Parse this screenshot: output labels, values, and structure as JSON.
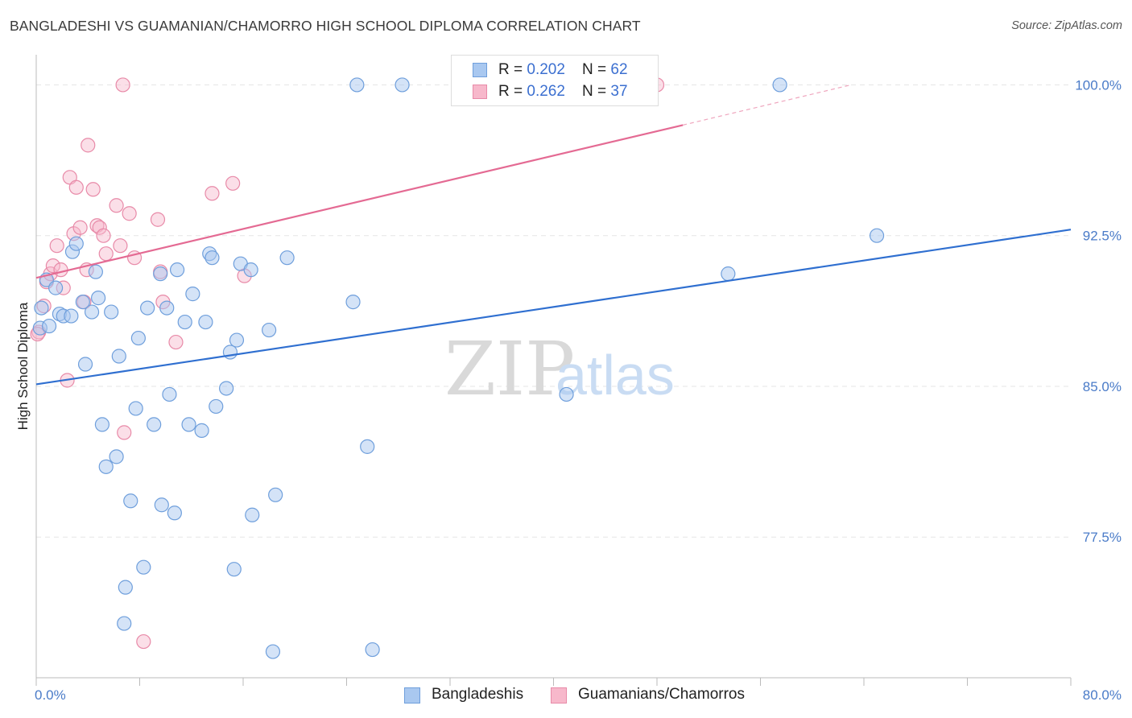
{
  "title": "BANGLADESHI VS GUAMANIAN/CHAMORRO HIGH SCHOOL DIPLOMA CORRELATION CHART",
  "source": "Source: ZipAtlas.com",
  "watermark": {
    "zip": "ZIP",
    "atlas": "atlas"
  },
  "legend": {
    "rows": [
      {
        "r_label": "R = ",
        "r_value": "0.202",
        "n_label": "N = ",
        "n_value": "62"
      },
      {
        "r_label": "R = ",
        "r_value": "0.262",
        "n_label": "N = ",
        "n_value": "37"
      }
    ]
  },
  "bottom_legend": {
    "series1": "Bangladeshis",
    "series2": "Guamanians/Chamorros"
  },
  "colors": {
    "series1_fill": "#a9c8f0",
    "series1_stroke": "#6f9fdc",
    "series1_line": "#2f6fd0",
    "series2_fill": "#f7b8cb",
    "series2_stroke": "#e88aa8",
    "series2_line": "#e46a93",
    "grid": "#e5e5e5",
    "axis_text": "#4a7bc8"
  },
  "chart_data": {
    "type": "scatter",
    "title": "BANGLADESHI VS GUAMANIAN/CHAMORRO HIGH SCHOOL DIPLOMA CORRELATION CHART",
    "xlabel": "",
    "ylabel": "High School Diploma",
    "xlim": [
      0,
      80
    ],
    "ylim": [
      70.5,
      101.5
    ],
    "x_tick_labels": [
      "0.0%",
      "80.0%"
    ],
    "y_ticks": [
      77.5,
      85.0,
      92.5,
      100.0
    ],
    "y_tick_labels": [
      "77.5%",
      "85.0%",
      "92.5%",
      "100.0%"
    ],
    "grid": true,
    "series": [
      {
        "name": "Bangladeshis",
        "r": 0.202,
        "n": 62,
        "trend": {
          "x": [
            0,
            80
          ],
          "y": [
            85.1,
            92.8
          ]
        },
        "points": [
          [
            0.3,
            87.9
          ],
          [
            0.4,
            88.9
          ],
          [
            0.8,
            90.3
          ],
          [
            1.0,
            88.0
          ],
          [
            1.5,
            89.9
          ],
          [
            1.8,
            88.6
          ],
          [
            2.1,
            88.5
          ],
          [
            2.7,
            88.5
          ],
          [
            2.8,
            91.7
          ],
          [
            3.1,
            92.1
          ],
          [
            3.6,
            89.2
          ],
          [
            3.8,
            86.1
          ],
          [
            4.3,
            88.7
          ],
          [
            4.6,
            90.7
          ],
          [
            4.8,
            89.4
          ],
          [
            5.1,
            83.1
          ],
          [
            5.4,
            81.0
          ],
          [
            5.8,
            88.7
          ],
          [
            6.2,
            81.5
          ],
          [
            6.4,
            86.5
          ],
          [
            6.8,
            73.2
          ],
          [
            6.9,
            75.0
          ],
          [
            7.3,
            79.3
          ],
          [
            7.7,
            83.9
          ],
          [
            7.9,
            87.4
          ],
          [
            8.3,
            76.0
          ],
          [
            8.6,
            88.9
          ],
          [
            9.1,
            83.1
          ],
          [
            9.6,
            90.6
          ],
          [
            9.7,
            79.1
          ],
          [
            10.1,
            88.9
          ],
          [
            10.3,
            84.6
          ],
          [
            10.7,
            78.7
          ],
          [
            10.9,
            90.8
          ],
          [
            11.5,
            88.2
          ],
          [
            11.8,
            83.1
          ],
          [
            12.1,
            89.6
          ],
          [
            12.8,
            82.8
          ],
          [
            13.1,
            88.2
          ],
          [
            13.4,
            91.6
          ],
          [
            13.6,
            91.4
          ],
          [
            13.9,
            84.0
          ],
          [
            14.7,
            84.9
          ],
          [
            15.0,
            86.7
          ],
          [
            15.3,
            75.9
          ],
          [
            15.5,
            87.3
          ],
          [
            15.8,
            91.1
          ],
          [
            16.6,
            90.8
          ],
          [
            16.7,
            78.6
          ],
          [
            18.0,
            87.8
          ],
          [
            18.3,
            71.8
          ],
          [
            18.5,
            79.6
          ],
          [
            19.4,
            91.4
          ],
          [
            24.5,
            89.2
          ],
          [
            24.8,
            100.0
          ],
          [
            25.6,
            82.0
          ],
          [
            26.0,
            71.9
          ],
          [
            28.3,
            100.0
          ],
          [
            41.0,
            84.6
          ],
          [
            53.5,
            90.6
          ],
          [
            57.5,
            100.0
          ],
          [
            65.0,
            92.5
          ]
        ]
      },
      {
        "name": "Guamanians/Chamorros",
        "r": 0.262,
        "n": 37,
        "trend": {
          "x": [
            0,
            50
          ],
          "y": [
            90.4,
            98.0
          ]
        },
        "trend_dashed": {
          "x": [
            50,
            63
          ],
          "y": [
            98.0,
            100.0
          ]
        },
        "points": [
          [
            0.2,
            87.7
          ],
          [
            0.6,
            89.0
          ],
          [
            0.8,
            90.2
          ],
          [
            1.1,
            90.6
          ],
          [
            1.3,
            91.0
          ],
          [
            1.6,
            92.0
          ],
          [
            1.9,
            90.8
          ],
          [
            2.1,
            89.9
          ],
          [
            2.4,
            85.3
          ],
          [
            2.6,
            95.4
          ],
          [
            2.9,
            92.6
          ],
          [
            3.1,
            94.9
          ],
          [
            3.4,
            92.9
          ],
          [
            3.7,
            89.2
          ],
          [
            3.9,
            90.8
          ],
          [
            4.0,
            97.0
          ],
          [
            4.4,
            94.8
          ],
          [
            4.7,
            93.0
          ],
          [
            4.9,
            92.9
          ],
          [
            5.2,
            92.5
          ],
          [
            5.4,
            91.6
          ],
          [
            6.2,
            94.0
          ],
          [
            6.5,
            92.0
          ],
          [
            6.7,
            100.0
          ],
          [
            6.8,
            82.7
          ],
          [
            7.2,
            93.6
          ],
          [
            7.6,
            91.4
          ],
          [
            8.3,
            72.3
          ],
          [
            9.4,
            93.3
          ],
          [
            9.6,
            90.7
          ],
          [
            9.8,
            89.2
          ],
          [
            10.8,
            87.2
          ],
          [
            13.6,
            94.6
          ],
          [
            15.2,
            95.1
          ],
          [
            16.1,
            90.5
          ],
          [
            48.0,
            100.0
          ],
          [
            0.1,
            87.6
          ]
        ]
      }
    ]
  }
}
